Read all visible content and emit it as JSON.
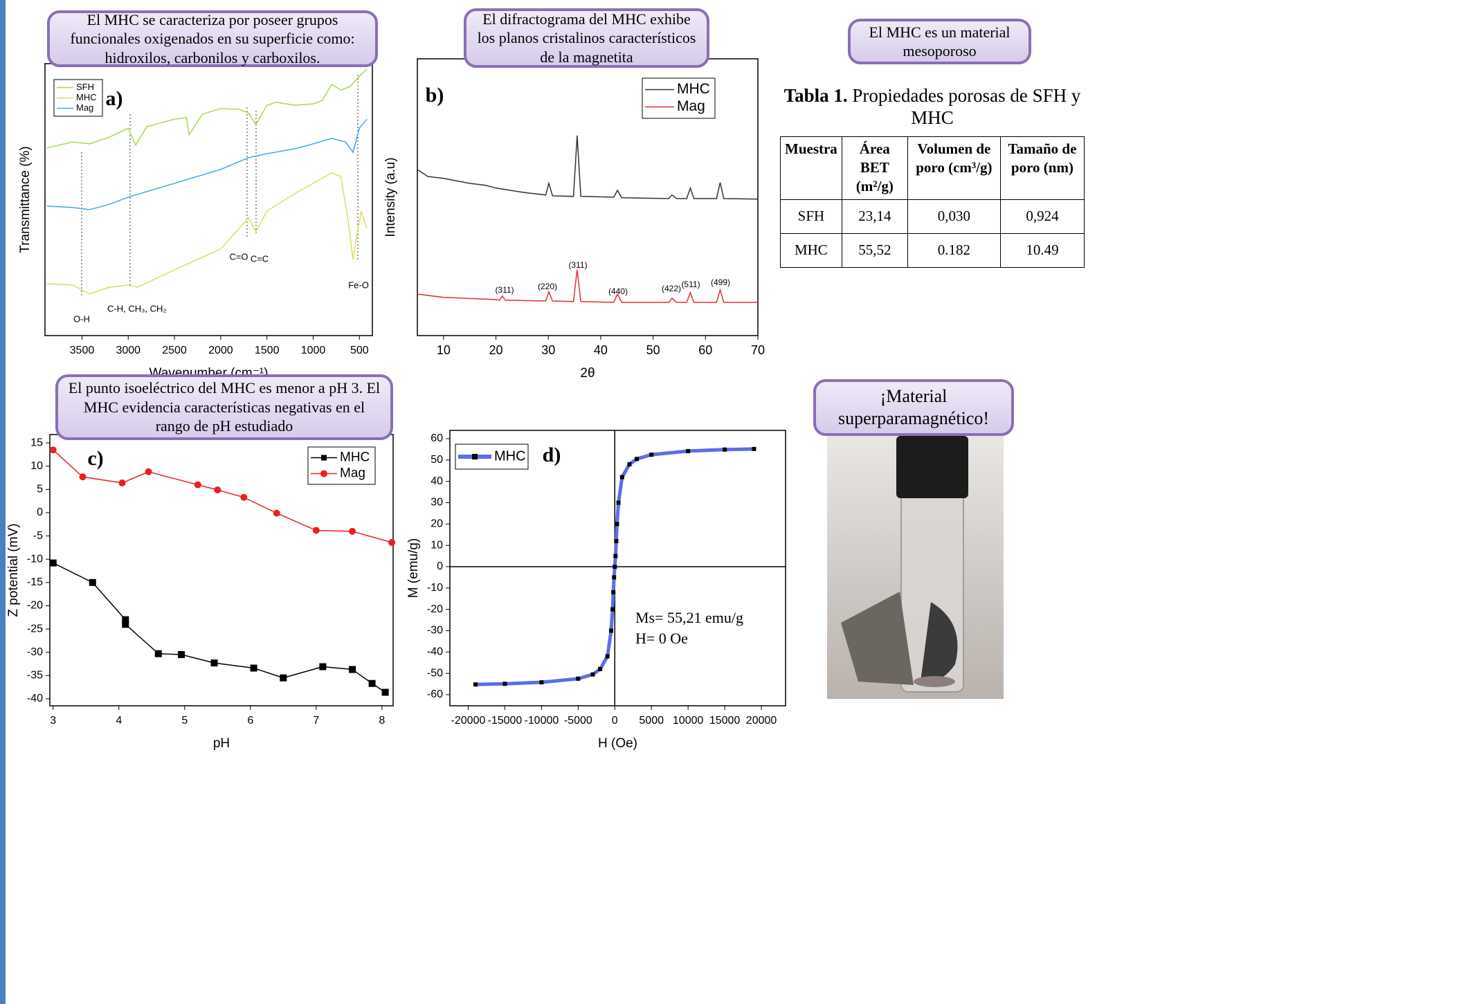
{
  "chart_data": [
    {
      "type": "line",
      "label": "a)",
      "x_label": "Wavenumber (cm⁻¹)",
      "y_label": "Transmittance (%)",
      "xlim": [
        3900,
        360
      ],
      "ylim": [
        0,
        100
      ],
      "xticks": [
        3500,
        3000,
        2500,
        2000,
        1500,
        1000,
        500
      ],
      "legend": "upper left",
      "series": [
        {
          "name": "SFH",
          "color": "#a6d94f",
          "x": [
            3880,
            3600,
            3420,
            3200,
            3000,
            2920,
            2800,
            2500,
            2370,
            2340,
            2200,
            2000,
            1800,
            1700,
            1620,
            1500,
            1400,
            1200,
            1000,
            900,
            800,
            700,
            600,
            500,
            420
          ],
          "values": [
            69.0,
            71.2,
            70.5,
            73.0,
            76.3,
            70.0,
            76.8,
            79.6,
            80.2,
            73.8,
            81.4,
            83.5,
            83.2,
            81.9,
            77.6,
            84.7,
            85.8,
            84.7,
            85.2,
            86.5,
            92.4,
            90.3,
            91.6,
            95.4,
            98.0
          ]
        },
        {
          "name": "MHC",
          "color": "#dede5a",
          "x": [
            3880,
            3600,
            3420,
            3200,
            3000,
            2900,
            2500,
            2000,
            1700,
            1620,
            1500,
            1200,
            1000,
            800,
            700,
            620,
            570,
            530,
            480,
            420
          ],
          "values": [
            19.1,
            18.6,
            15.3,
            17.8,
            18.6,
            17.8,
            24.2,
            31.8,
            43.3,
            38.2,
            45.8,
            52.2,
            56.0,
            59.8,
            58.5,
            42.0,
            28.0,
            36.9,
            45.8,
            39.4
          ]
        },
        {
          "name": "Mag",
          "color": "#3fa9e8",
          "x": [
            3880,
            3600,
            3420,
            3200,
            3000,
            2500,
            2000,
            1700,
            1500,
            1200,
            1000,
            800,
            650,
            570,
            500,
            420
          ],
          "values": [
            47.6,
            47.1,
            46.3,
            48.3,
            50.9,
            56.0,
            61.1,
            65.4,
            66.9,
            68.7,
            70.5,
            72.5,
            71.2,
            67.4,
            76.3,
            79.6
          ]
        }
      ],
      "annotations": [
        "O-H",
        "C-H, CH₃, CH₂",
        "C=O",
        "C=C",
        "Fe-O"
      ]
    },
    {
      "type": "line",
      "label": "b)",
      "x_label": "2θ",
      "y_label": "Intensity (a.u)",
      "xlim": [
        5,
        70
      ],
      "ylim": [
        0,
        100
      ],
      "xticks": [
        10,
        20,
        30,
        40,
        50,
        60,
        70
      ],
      "legend": "upper right",
      "series": [
        {
          "name": "MHC",
          "color": "#333333",
          "x": [
            5,
            7,
            10,
            15,
            18,
            20,
            25,
            29.5,
            30.1,
            30.8,
            34.8,
            35.5,
            36.2,
            42.5,
            43.2,
            44,
            53,
            53.6,
            54.5,
            56.4,
            57.1,
            57.8,
            62.1,
            62.8,
            63.5,
            70
          ],
          "values": [
            60.0,
            57.5,
            56.8,
            55.0,
            54.3,
            53.3,
            51.8,
            50.8,
            55.0,
            50.5,
            50.3,
            72.3,
            50.3,
            50.0,
            52.5,
            49.8,
            49.5,
            50.8,
            49.5,
            49.5,
            53.3,
            49.5,
            49.5,
            55.3,
            49.5,
            49.3
          ]
        },
        {
          "name": "Mag",
          "color": "#e03030",
          "x": [
            5,
            10,
            20,
            20.7,
            21.2,
            21.8,
            29.5,
            30.1,
            30.8,
            34.8,
            35.5,
            36.2,
            42.5,
            43.2,
            44,
            53,
            53.6,
            54.5,
            56.4,
            57.1,
            57.8,
            62.1,
            62.8,
            63.5,
            70
          ],
          "values": [
            15.0,
            13.8,
            13.0,
            12.8,
            14.3,
            12.8,
            12.5,
            15.8,
            12.5,
            12.3,
            23.8,
            12.3,
            12.0,
            15.0,
            12.0,
            12.0,
            13.5,
            12.0,
            12.0,
            15.5,
            12.0,
            12.0,
            16.5,
            12.0,
            12.0
          ]
        }
      ],
      "annotations": [
        "(311)",
        "(220)",
        "(311)",
        "(440)",
        "(422)",
        "(511)",
        "(499)"
      ]
    },
    {
      "type": "line",
      "label": "c)",
      "x_label": "pH",
      "y_label": "Z potential (mV)",
      "xlim": [
        2.95,
        8.17
      ],
      "ylim": [
        -41.5,
        16.8
      ],
      "xticks": [
        3,
        4,
        5,
        6,
        7,
        8
      ],
      "yticks": [
        15,
        10,
        5,
        0,
        -5,
        -10,
        -15,
        -20,
        -25,
        -30,
        -35,
        -40
      ],
      "legend": "upper right",
      "series": [
        {
          "name": "MHC",
          "color": "#000000",
          "marker": "square",
          "x": [
            3,
            3.6,
            4.1,
            4.1,
            4.6,
            4.95,
            5.45,
            6.05,
            6.5,
            7.1,
            7.55,
            7.85,
            8.05
          ],
          "values": [
            -10.8,
            -15,
            -23,
            -24,
            -30.3,
            -30.5,
            -32.3,
            -33.4,
            -35.5,
            -33.1,
            -33.7,
            -36.7,
            -38.6
          ]
        },
        {
          "name": "Mag",
          "color": "#e8211f",
          "marker": "circle",
          "x": [
            3,
            3.45,
            4.05,
            4.45,
            5.2,
            5.5,
            5.9,
            6.4,
            7,
            7.55,
            8.15
          ],
          "values": [
            13.5,
            7.7,
            6.4,
            8.8,
            6,
            4.9,
            3.3,
            -0.1,
            -3.8,
            -4.0,
            -6.4
          ]
        }
      ]
    },
    {
      "type": "line",
      "label": "d)",
      "x_label": "H (Oe)",
      "y_label": "M (emu/g)",
      "xlim": [
        -22500,
        23300
      ],
      "ylim": [
        -65.2,
        63.9
      ],
      "xticks": [
        -20000,
        -15000,
        -10000,
        -5000,
        0,
        5000,
        10000,
        15000,
        20000
      ],
      "yticks": [
        60,
        50,
        40,
        30,
        20,
        10,
        0,
        -10,
        -20,
        -30,
        -40,
        -50,
        -60
      ],
      "legend": "upper left",
      "origin_lines": true,
      "series": [
        {
          "name": "MHC",
          "color": "#5b6ee8",
          "marker": "square",
          "marker_color": "#000000",
          "x": [
            -19000,
            -15000,
            -10000,
            -5000,
            -3000,
            -2000,
            -1000,
            -500,
            -300,
            -200,
            -100,
            0,
            100,
            200,
            300,
            500,
            1000,
            2000,
            3000,
            5000,
            10000,
            15000,
            19000
          ],
          "values": [
            -55.2,
            -54.9,
            -54.2,
            -52.5,
            -50.5,
            -48,
            -42,
            -30,
            -20,
            -12,
            -5,
            0,
            5,
            12,
            20,
            30,
            42,
            48,
            50.5,
            52.5,
            54.2,
            54.9,
            55.2
          ]
        }
      ],
      "annotations": [
        "Ms= 55,21 emu/g",
        "H= 0 Oe"
      ]
    }
  ],
  "callouts": [
    "El MHC se caracteriza por poseer grupos funcionales oxigenados en su superficie como: hidroxilos, carbonilos y carboxilos.",
    "El difractograma del MHC exhibe los planos cristalinos característicos de la magnetita",
    "El MHC es un material mesoporoso",
    "El punto isoeléctrico del MHC es menor a pH 3. El MHC evidencia características negativas en el rango de pH estudiado",
    "¡Material superparamagnético!"
  ],
  "table": {
    "caption_label": "Tabla 1.",
    "caption": "Propiedades porosas de SFH y MHC",
    "header": [
      "Muestra",
      "Área BET (m²/g)",
      "Volumen de poro (cm³/g)",
      "Tamaño de poro (nm)"
    ],
    "rows": [
      [
        "SFH",
        "23,14",
        "0,030",
        "0,924"
      ],
      [
        "MHC",
        "55,52",
        "0.182",
        "10.49"
      ]
    ]
  }
}
